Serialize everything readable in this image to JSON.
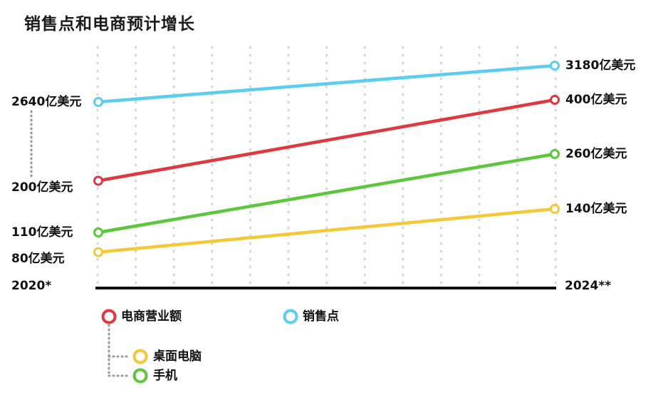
{
  "chart_data": {
    "type": "line",
    "title": "销售点和电商预计增长",
    "x": [
      "2020*",
      "2024**"
    ],
    "unit": "亿美元",
    "series": [
      {
        "key": "pos",
        "name": "销售点",
        "values": [
          2640,
          3180
        ],
        "labels": [
          "2640亿美元",
          "3180亿美元"
        ],
        "color": "#5bcdee"
      },
      {
        "key": "ecom",
        "name": "电商营业额",
        "values": [
          200,
          400
        ],
        "labels": [
          "200亿美元",
          "400亿美元"
        ],
        "color": "#e0383e"
      },
      {
        "key": "mobile",
        "name": "手机",
        "values": [
          110,
          260
        ],
        "labels": [
          "110亿美元",
          "260亿美元"
        ],
        "color": "#5cc63c"
      },
      {
        "key": "desktop",
        "name": "桌面电脑",
        "values": [
          80,
          140
        ],
        "labels": [
          "80亿美元",
          "140亿美元"
        ],
        "color": "#f5c836"
      }
    ],
    "grid": "dotted vertical",
    "legend_position": "bottom",
    "axis_color": "#111111",
    "grid_color": "#d6d6d6",
    "connector_color": "#999999"
  }
}
